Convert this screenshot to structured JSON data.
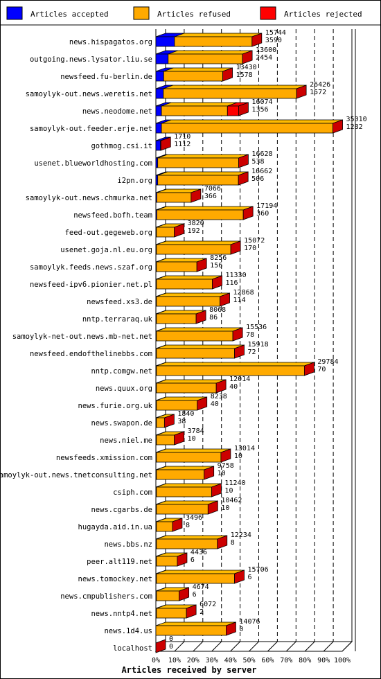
{
  "chart_data": {
    "type": "bar",
    "orientation": "horizontal",
    "stacked": true,
    "style": "3d",
    "xlabel": "Articles received by server",
    "xlim": [
      0,
      100
    ],
    "x_unit": "percent",
    "x_ticks": [
      "0%",
      "10%",
      "20%",
      "30%",
      "40%",
      "50%",
      "60%",
      "70%",
      "80%",
      "90%",
      "100%"
    ],
    "grid": "vertical-dashed",
    "legend_position": "top",
    "legend": [
      {
        "name": "Articles accepted",
        "color": "#0000ff"
      },
      {
        "name": "Articles refused",
        "color": "#ffaa00"
      },
      {
        "name": "Articles rejected",
        "color": "#ff0000"
      }
    ],
    "categories": [
      "news.hispagatos.org",
      "outgoing.news.lysator.liu.se",
      "newsfeed.fu-berlin.de",
      "samoylyk-out.news.weretis.net",
      "news.neodome.net",
      "samoylyk-out.feeder.erje.net",
      "gothmog.csi.it",
      "usenet.blueworldhosting.com",
      "i2pn.org",
      "samoylyk-out.news.chmurka.net",
      "newsfeed.bofh.team",
      "feed-out.gegeweb.org",
      "usenet.goja.nl.eu.org",
      "samoylyk.feeds.news.szaf.org",
      "newsfeed-ipv6.pionier.net.pl",
      "newsfeed.xs3.de",
      "nntp.terraraq.uk",
      "samoylyk-net-out.news.mb-net.net",
      "newsfeed.endofthelinebbs.com",
      "nntp.comgw.net",
      "news.quux.org",
      "news.furie.org.uk",
      "news.swapon.de",
      "news.niel.me",
      "newsfeeds.xmission.com",
      "samoylyk-out.news.tnetconsulting.net",
      "csiph.com",
      "news.cgarbs.de",
      "hugayda.aid.in.ua",
      "news.bbs.nz",
      "peer.alt119.net",
      "news.tomockey.net",
      "news.cmpublishers.com",
      "news.nntp4.net",
      "news.1d4.us",
      "localhost"
    ],
    "labels_total": [
      "15744",
      "13600",
      "13430",
      "26426",
      "16074",
      "35010",
      "1710",
      "16628",
      "16662",
      "7066",
      "17194",
      "3820",
      "15072",
      "8256",
      "11330",
      "12868",
      "8068",
      "15536",
      "15918",
      "29784",
      "12014",
      "8238",
      "1840",
      "3784",
      "13014",
      "9758",
      "11240",
      "10462",
      "3496",
      "12234",
      "4436",
      "15706",
      "4674",
      "6072",
      "14076",
      "0"
    ],
    "labels_accepted": [
      "3590",
      "2454",
      "1578",
      "1572",
      "1356",
      "1282",
      "1112",
      "538",
      "506",
      "366",
      "360",
      "192",
      "170",
      "156",
      "116",
      "114",
      "86",
      "78",
      "72",
      "70",
      "40",
      "40",
      "38",
      "10",
      "10",
      "10",
      "10",
      "10",
      "8",
      "8",
      "6",
      "6",
      "6",
      "2",
      "0",
      "0"
    ],
    "series": [
      {
        "name": "Articles accepted",
        "color": "#0000ff",
        "values": [
          10.0,
          6.6,
          4.2,
          4.0,
          3.0,
          3.0,
          2.5,
          1.0,
          1.0,
          0.5,
          0.5,
          0.3,
          0.3,
          0.3,
          0.3,
          0.3,
          0.3,
          0.3,
          0.3,
          0.3,
          0.3,
          0.3,
          0.3,
          0.3,
          0.3,
          0.3,
          0.3,
          0.3,
          0.3,
          0.3,
          0.3,
          0.3,
          0.3,
          0.3,
          0,
          0
        ]
      },
      {
        "name": "Articles refused",
        "color": "#ffaa00",
        "values": [
          41.6,
          39.9,
          31.7,
          71.5,
          35.4,
          92.0,
          0.2,
          43.4,
          43.3,
          18.4,
          46.4,
          9.6,
          39.9,
          21.7,
          30.0,
          34.1,
          21.3,
          41.0,
          41.9,
          79.4,
          32.1,
          21.9,
          4.3,
          9.6,
          34.6,
          25.6,
          29.6,
          27.7,
          8.6,
          32.7,
          11.2,
          41.9,
          12.2,
          16.1,
          37.7,
          0
        ]
      },
      {
        "name": "Articles rejected",
        "color": "#ff0000",
        "values": [
          0,
          0,
          0,
          0,
          6.0,
          0,
          0,
          0,
          0,
          0,
          0,
          0,
          0,
          0,
          0,
          0,
          0,
          0,
          0,
          0,
          0,
          0,
          0,
          0,
          0,
          0,
          0,
          0,
          0,
          0,
          0,
          0,
          0,
          0,
          0,
          0
        ]
      }
    ]
  }
}
